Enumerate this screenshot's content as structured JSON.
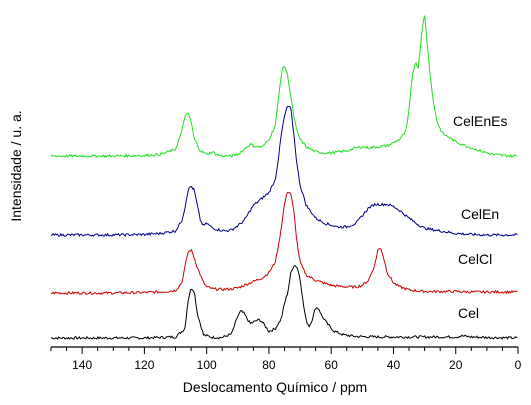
{
  "chart_data": {
    "type": "line",
    "title": "",
    "xlabel": "Deslocamento Químico / ppm",
    "ylabel": "Intensidade / u. a.",
    "xlim": [
      150,
      0
    ],
    "x_reversed": true,
    "x_ticks": [
      "140",
      "120",
      "100",
      "80",
      "60",
      "40",
      "20",
      "0"
    ],
    "x_tick_values": [
      140,
      120,
      100,
      80,
      60,
      40,
      20,
      0
    ],
    "y_ticks_shown": false,
    "grid": false,
    "legend": "inline labels at right of each trace",
    "series": [
      {
        "name": "Cel",
        "color": "#000000",
        "points": [
          [
            150,
            0.02
          ],
          [
            140,
            0.02
          ],
          [
            130,
            0.02
          ],
          [
            120,
            0.02
          ],
          [
            115,
            0.03
          ],
          [
            110,
            0.04
          ],
          [
            107,
            0.2
          ],
          [
            106,
            0.75
          ],
          [
            105,
            1.0
          ],
          [
            104,
            0.95
          ],
          [
            103,
            0.5
          ],
          [
            101,
            0.08
          ],
          [
            98,
            0.03
          ],
          [
            95,
            0.03
          ],
          [
            92,
            0.1
          ],
          [
            90,
            0.45
          ],
          [
            89,
            0.55
          ],
          [
            88,
            0.5
          ],
          [
            86,
            0.3
          ],
          [
            84,
            0.36
          ],
          [
            83,
            0.38
          ],
          [
            82,
            0.32
          ],
          [
            80,
            0.15
          ],
          [
            78,
            0.2
          ],
          [
            76,
            0.4
          ],
          [
            75,
            0.7
          ],
          [
            74,
            0.9
          ],
          [
            73,
            1.28
          ],
          [
            72,
            1.45
          ],
          [
            71,
            1.42
          ],
          [
            70,
            1.2
          ],
          [
            69,
            0.7
          ],
          [
            68,
            0.35
          ],
          [
            67,
            0.25
          ],
          [
            66,
            0.4
          ],
          [
            65,
            0.62
          ],
          [
            64,
            0.6
          ],
          [
            63,
            0.45
          ],
          [
            61,
            0.28
          ],
          [
            59,
            0.15
          ],
          [
            56,
            0.08
          ],
          [
            52,
            0.05
          ],
          [
            45,
            0.04
          ],
          [
            40,
            0.04
          ],
          [
            30,
            0.04
          ],
          [
            20,
            0.04
          ],
          [
            18,
            0.06
          ],
          [
            15,
            0.04
          ],
          [
            10,
            0.03
          ],
          [
            0,
            0.02
          ]
        ]
      },
      {
        "name": "CelCl",
        "color": "#cc0000",
        "points": [
          [
            150,
            0.0
          ],
          [
            140,
            0.0
          ],
          [
            130,
            0.0
          ],
          [
            120,
            0.01
          ],
          [
            115,
            0.02
          ],
          [
            110,
            0.05
          ],
          [
            108,
            0.2
          ],
          [
            107,
            0.5
          ],
          [
            106,
            0.8
          ],
          [
            105,
            0.85
          ],
          [
            104,
            0.7
          ],
          [
            103,
            0.5
          ],
          [
            102,
            0.35
          ],
          [
            101,
            0.2
          ],
          [
            100,
            0.12
          ],
          [
            98,
            0.08
          ],
          [
            95,
            0.07
          ],
          [
            92,
            0.08
          ],
          [
            90,
            0.1
          ],
          [
            88,
            0.15
          ],
          [
            86,
            0.2
          ],
          [
            84,
            0.25
          ],
          [
            82,
            0.3
          ],
          [
            80,
            0.4
          ],
          [
            78,
            0.6
          ],
          [
            77,
            0.9
          ],
          [
            76,
            1.3
          ],
          [
            75,
            1.75
          ],
          [
            74,
            2.0
          ],
          [
            73,
            1.95
          ],
          [
            72,
            1.6
          ],
          [
            71,
            1.0
          ],
          [
            70,
            0.6
          ],
          [
            68,
            0.35
          ],
          [
            65,
            0.25
          ],
          [
            60,
            0.15
          ],
          [
            55,
            0.12
          ],
          [
            52,
            0.12
          ],
          [
            50,
            0.15
          ],
          [
            48,
            0.25
          ],
          [
            46,
            0.55
          ],
          [
            45,
            0.85
          ],
          [
            44,
            0.88
          ],
          [
            43,
            0.65
          ],
          [
            42,
            0.4
          ],
          [
            40,
            0.2
          ],
          [
            38,
            0.12
          ],
          [
            35,
            0.06
          ],
          [
            30,
            0.03
          ],
          [
            25,
            0.03
          ],
          [
            20,
            0.03
          ],
          [
            15,
            0.02
          ],
          [
            10,
            0.02
          ],
          [
            0,
            0.02
          ]
        ]
      },
      {
        "name": "CelEn",
        "color": "#00008b",
        "points": [
          [
            150,
            0.02
          ],
          [
            140,
            0.02
          ],
          [
            130,
            0.02
          ],
          [
            120,
            0.03
          ],
          [
            115,
            0.05
          ],
          [
            110,
            0.1
          ],
          [
            108,
            0.3
          ],
          [
            107,
            0.55
          ],
          [
            106,
            0.9
          ],
          [
            105,
            0.98
          ],
          [
            104,
            0.9
          ],
          [
            103,
            0.6
          ],
          [
            102,
            0.3
          ],
          [
            101,
            0.2
          ],
          [
            100,
            0.25
          ],
          [
            98,
            0.15
          ],
          [
            96,
            0.12
          ],
          [
            94,
            0.1
          ],
          [
            92,
            0.12
          ],
          [
            90,
            0.2
          ],
          [
            88,
            0.3
          ],
          [
            86,
            0.5
          ],
          [
            85,
            0.6
          ],
          [
            84,
            0.65
          ],
          [
            82,
            0.75
          ],
          [
            80,
            0.85
          ],
          [
            78,
            1.1
          ],
          [
            77,
            1.5
          ],
          [
            76,
            2.0
          ],
          [
            75,
            2.35
          ],
          [
            74,
            2.55
          ],
          [
            73,
            2.5
          ],
          [
            72,
            2.0
          ],
          [
            71,
            1.4
          ],
          [
            70,
            1.0
          ],
          [
            68,
            0.6
          ],
          [
            65,
            0.35
          ],
          [
            62,
            0.25
          ],
          [
            58,
            0.18
          ],
          [
            55,
            0.18
          ],
          [
            52,
            0.25
          ],
          [
            50,
            0.4
          ],
          [
            48,
            0.55
          ],
          [
            46,
            0.62
          ],
          [
            44,
            0.62
          ],
          [
            42,
            0.62
          ],
          [
            40,
            0.58
          ],
          [
            38,
            0.5
          ],
          [
            35,
            0.35
          ],
          [
            32,
            0.22
          ],
          [
            30,
            0.15
          ],
          [
            25,
            0.1
          ],
          [
            20,
            0.05
          ],
          [
            15,
            0.03
          ],
          [
            10,
            0.02
          ],
          [
            5,
            0.02
          ],
          [
            0,
            0.02
          ]
        ]
      },
      {
        "name": "CelEnEs",
        "color": "#22dd22",
        "points": [
          [
            150,
            0.02
          ],
          [
            140,
            0.02
          ],
          [
            130,
            0.02
          ],
          [
            120,
            0.03
          ],
          [
            115,
            0.05
          ],
          [
            110,
            0.15
          ],
          [
            108,
            0.5
          ],
          [
            107,
            0.8
          ],
          [
            106,
            0.85
          ],
          [
            105,
            0.7
          ],
          [
            104,
            0.35
          ],
          [
            102,
            0.12
          ],
          [
            100,
            0.05
          ],
          [
            98,
            0.1
          ],
          [
            97,
            0.05
          ],
          [
            95,
            0.02
          ],
          [
            92,
            0.02
          ],
          [
            90,
            0.05
          ],
          [
            88,
            0.15
          ],
          [
            86,
            0.25
          ],
          [
            84,
            0.2
          ],
          [
            82,
            0.2
          ],
          [
            80,
            0.35
          ],
          [
            78,
            0.6
          ],
          [
            77,
            1.1
          ],
          [
            76,
            1.65
          ],
          [
            75,
            1.8
          ],
          [
            74,
            1.6
          ],
          [
            73,
            1.2
          ],
          [
            72,
            0.8
          ],
          [
            71,
            0.5
          ],
          [
            70,
            0.35
          ],
          [
            68,
            0.2
          ],
          [
            65,
            0.1
          ],
          [
            62,
            0.08
          ],
          [
            60,
            0.08
          ],
          [
            55,
            0.12
          ],
          [
            52,
            0.18
          ],
          [
            50,
            0.2
          ],
          [
            48,
            0.18
          ],
          [
            45,
            0.2
          ],
          [
            42,
            0.22
          ],
          [
            40,
            0.28
          ],
          [
            38,
            0.35
          ],
          [
            36,
            0.5
          ],
          [
            35,
            0.9
          ],
          [
            34,
            1.6
          ],
          [
            33,
            1.85
          ],
          [
            32,
            1.75
          ],
          [
            31,
            2.4
          ],
          [
            30,
            2.8
          ],
          [
            29,
            2.1
          ],
          [
            28,
            1.5
          ],
          [
            27,
            1.0
          ],
          [
            26,
            0.7
          ],
          [
            25,
            0.55
          ],
          [
            24,
            0.45
          ],
          [
            22,
            0.38
          ],
          [
            20,
            0.3
          ],
          [
            18,
            0.25
          ],
          [
            15,
            0.18
          ],
          [
            12,
            0.12
          ],
          [
            10,
            0.08
          ],
          [
            8,
            0.05
          ],
          [
            5,
            0.03
          ],
          [
            2,
            0.02
          ],
          [
            0,
            0.02
          ]
        ]
      }
    ]
  }
}
